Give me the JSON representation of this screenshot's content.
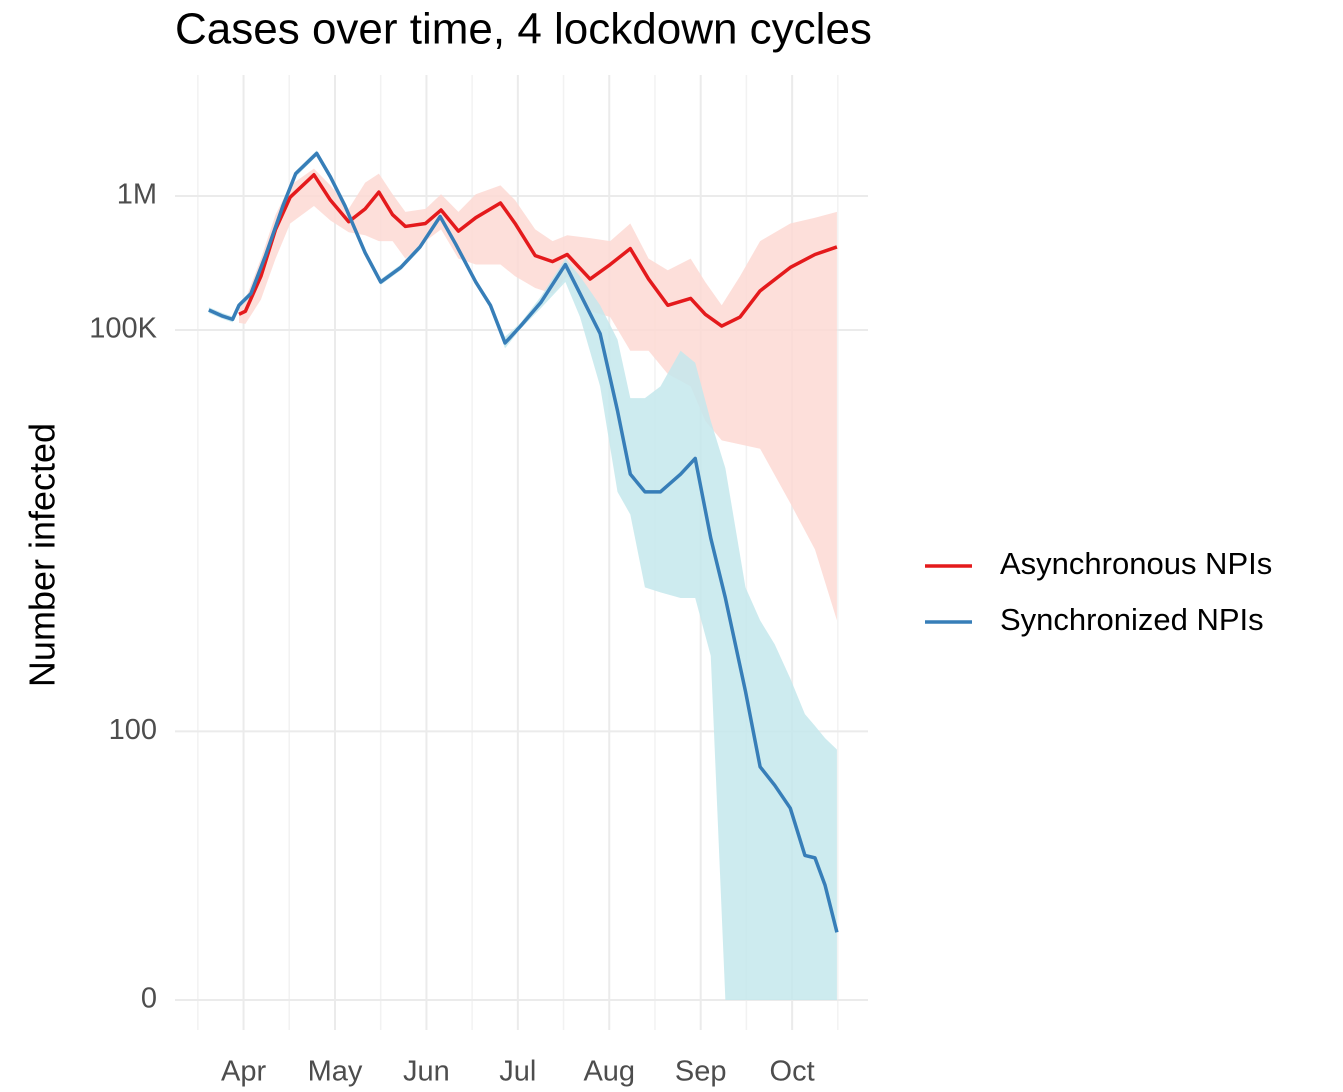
{
  "chart_data": {
    "type": "line",
    "title": "Cases over time, 4 lockdown cycles",
    "y_label": "Number infected",
    "yscale": "log1p",
    "ylim": [
      0,
      8000000
    ],
    "yticks": [
      {
        "value": 1000000,
        "label": "1M"
      },
      {
        "value": 100000,
        "label": "100K"
      },
      100,
      0
    ],
    "xlim": [
      3.25,
      10.83
    ],
    "xticks": [
      {
        "value": 4,
        "label": "Apr"
      },
      {
        "value": 5,
        "label": "May"
      },
      {
        "value": 6,
        "label": "Jun"
      },
      {
        "value": 7,
        "label": "Jul"
      },
      {
        "value": 8,
        "label": "Aug"
      },
      {
        "value": 9,
        "label": "Sep"
      },
      {
        "value": 10,
        "label": "Oct"
      }
    ],
    "grid": true,
    "legend": "right",
    "series": [
      {
        "name": "Asynchronous NPIs",
        "color": "#e41a1c",
        "band_color": "#fdd9d3",
        "x": [
          3.95,
          4.02,
          4.19,
          4.35,
          4.51,
          4.77,
          4.95,
          5.15,
          5.33,
          5.48,
          5.63,
          5.77,
          5.99,
          6.16,
          6.35,
          6.54,
          6.81,
          6.97,
          7.19,
          7.38,
          7.54,
          7.79,
          8.01,
          8.23,
          8.43,
          8.64,
          8.89,
          9.05,
          9.23,
          9.43,
          9.65,
          9.98,
          10.25,
          10.49
        ],
        "values": [
          131000,
          138000,
          252000,
          564000,
          980000,
          1440000,
          931000,
          643000,
          802000,
          1070000,
          725000,
          593000,
          624000,
          786000,
          547000,
          689000,
          887000,
          624000,
          359000,
          324000,
          366000,
          240000,
          308000,
          405000,
          240000,
          153000,
          172000,
          131000,
          107000,
          125000,
          196000,
          293000,
          366000,
          417000
        ],
        "upper": [
          160000,
          169000,
          341000,
          725000,
          1200000,
          1600000,
          1200000,
          802000,
          1260000,
          1470000,
          1030000,
          762000,
          802000,
          1030000,
          762000,
          1030000,
          1200000,
          931000,
          564000,
          461000,
          510000,
          485000,
          461000,
          624000,
          341000,
          279000,
          341000,
          228000,
          153000,
          252000,
          461000,
          624000,
          689000,
          762000
        ],
        "lower": [
          113000,
          111000,
          169000,
          341000,
          624000,
          843000,
          656000,
          536000,
          510000,
          461000,
          461000,
          341000,
          461000,
          564000,
          341000,
          308000,
          308000,
          252000,
          206000,
          187000,
          252000,
          138000,
          125000,
          70000,
          70000,
          47000,
          38000,
          21000,
          15000,
          14000,
          13000,
          5100,
          2300,
          680
        ]
      },
      {
        "name": "Synchronized NPIs",
        "color": "#377eb8",
        "band_color": "#c4e7ec",
        "x": [
          3.62,
          3.77,
          3.88,
          3.95,
          4.08,
          4.24,
          4.43,
          4.57,
          4.8,
          4.95,
          5.11,
          5.33,
          5.5,
          5.72,
          5.93,
          6.15,
          6.32,
          6.54,
          6.7,
          6.86,
          7.03,
          7.25,
          7.52,
          7.68,
          7.9,
          8.09,
          8.23,
          8.39,
          8.56,
          8.78,
          8.94,
          9.11,
          9.27,
          9.49,
          9.65,
          9.81,
          9.98,
          10.14,
          10.25,
          10.36,
          10.49
        ],
        "values": [
          141000,
          127000,
          120000,
          153000,
          187000,
          359000,
          843000,
          1470000,
          2080000,
          1390000,
          843000,
          377000,
          228000,
          293000,
          417000,
          703000,
          438000,
          228000,
          153000,
          80000,
          107000,
          160000,
          308000,
          187000,
          94000,
          25000,
          8400,
          6200,
          6200,
          8400,
          11000,
          2800,
          1000,
          200,
          54,
          39,
          26,
          11,
          10.5,
          6.2,
          2.2
        ],
        "upper": [
          148000,
          134000,
          126000,
          160000,
          196000,
          377000,
          887000,
          1540000,
          2190000,
          1470000,
          887000,
          396000,
          240000,
          308000,
          438000,
          740000,
          461000,
          240000,
          160000,
          89000,
          113000,
          177000,
          341000,
          252000,
          153000,
          85000,
          31000,
          31000,
          38000,
          70000,
          57000,
          21000,
          9300,
          1200,
          680,
          450,
          250,
          135,
          110,
          89,
          73
        ],
        "lower": [
          134000,
          121000,
          114000,
          145000,
          177000,
          341000,
          802000,
          1390000,
          1980000,
          1330000,
          802000,
          359000,
          217000,
          279000,
          396000,
          669000,
          417000,
          217000,
          145000,
          73000,
          102000,
          145000,
          228000,
          125000,
          38000,
          6200,
          4200,
          1200,
          1100,
          1000,
          1000,
          370,
          0,
          0,
          0,
          0,
          0,
          0,
          0,
          0,
          0
        ]
      }
    ]
  }
}
